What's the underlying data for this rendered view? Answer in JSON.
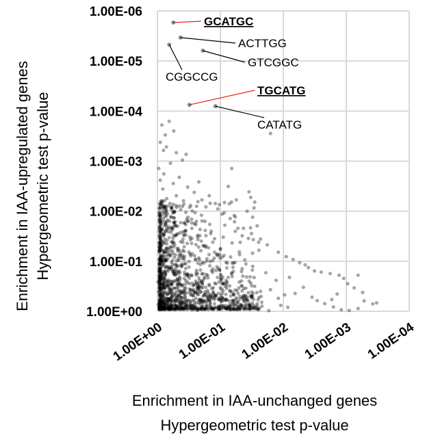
{
  "chart_data": {
    "type": "scatter",
    "scale": "log-reversed",
    "grid": true,
    "x_axis": {
      "label_lines": [
        "Enrichment in IAA-unchanged genes",
        "Hypergeometric test p-value"
      ],
      "ticks": [
        "1.00E+00",
        "1.00E-01",
        "1.00E-02",
        "1.00E-03",
        "1.00E-04"
      ],
      "tick_values": [
        1,
        0.1,
        0.01,
        0.001,
        0.0001
      ],
      "range": [
        1,
        0.0001
      ]
    },
    "y_axis": {
      "label_lines": [
        "Enrichment in IAA-upregulated genes",
        "Hypergeometric test p-value"
      ],
      "ticks": [
        "1.00E+00",
        "1.00E-01",
        "1.00E-02",
        "1.00E-03",
        "1.00E-04",
        "1.00E-05",
        "1.00E-06"
      ],
      "tick_values": [
        1,
        0.1,
        0.01,
        0.001,
        0.0001,
        1e-05,
        1e-06
      ],
      "range": [
        1,
        1e-06
      ]
    },
    "point_color": "#000000",
    "point_opacity": 0.35,
    "leader_color_highlight": "#e8201e",
    "leader_color_normal": "#000000",
    "labeled_points": [
      {
        "label": "GCATGC",
        "x": 0.56,
        "y": 1.7e-06,
        "highlight": true
      },
      {
        "label": "ACTTGG",
        "x": 0.43,
        "y": 3.4e-06,
        "highlight": false
      },
      {
        "label": "GTCGGC",
        "x": 0.19,
        "y": 6.2e-06,
        "highlight": false
      },
      {
        "label": "CGGCCG",
        "x": 0.65,
        "y": 4.7e-06,
        "highlight": false
      },
      {
        "label": "TGCATG",
        "x": 0.31,
        "y": 7.5e-05,
        "highlight": true
      },
      {
        "label": "CATATG",
        "x": 0.12,
        "y": 8e-05,
        "highlight": false
      }
    ],
    "points": [
      [
        0.65,
        0.00016
      ],
      [
        0.85,
        0.00019
      ],
      [
        0.75,
        0.0003
      ],
      [
        0.55,
        0.00025
      ],
      [
        0.016,
        0.00028
      ],
      [
        0.9,
        0.00042
      ],
      [
        0.8,
        0.00061
      ],
      [
        0.5,
        0.00068
      ],
      [
        0.35,
        0.00073
      ],
      [
        0.4,
        0.00095
      ],
      [
        0.72,
        0.00052
      ],
      [
        0.62,
        0.0011
      ],
      [
        0.95,
        0.0014
      ],
      [
        0.45,
        0.0021
      ],
      [
        0.066,
        0.0014
      ],
      [
        0.79,
        0.0018
      ],
      [
        0.82,
        0.0036
      ],
      [
        0.56,
        0.0028
      ],
      [
        0.33,
        0.0033
      ],
      [
        0.26,
        0.0042
      ],
      [
        0.22,
        0.0026
      ],
      [
        0.9,
        0.0024
      ],
      [
        0.71,
        0.0056
      ],
      [
        0.5,
        0.0049
      ],
      [
        0.15,
        0.0049
      ],
      [
        0.12,
        0.007
      ],
      [
        0.075,
        0.0032
      ],
      [
        0.035,
        0.0041
      ],
      [
        0.033,
        0.0053
      ],
      [
        0.6,
        0.0086
      ],
      [
        0.38,
        0.0072
      ],
      [
        0.88,
        0.0063
      ],
      [
        0.28,
        0.0099
      ],
      [
        0.17,
        0.0082
      ],
      [
        0.07,
        0.014
      ],
      [
        0.11,
        0.009
      ],
      [
        0.058,
        0.013
      ],
      [
        0.043,
        0.022
      ],
      [
        0.032,
        0.028
      ],
      [
        0.085,
        0.019
      ],
      [
        0.2,
        0.012
      ],
      [
        0.24,
        0.016
      ],
      [
        0.14,
        0.025
      ],
      [
        0.045,
        0.031
      ],
      [
        0.023,
        0.036
      ],
      [
        0.018,
        0.047
      ],
      [
        0.03,
        0.037
      ],
      [
        0.09,
        0.033
      ],
      [
        0.065,
        0.043
      ],
      [
        0.1,
        0.058
      ],
      [
        0.05,
        0.065
      ],
      [
        0.012,
        0.066
      ],
      [
        0.009,
        0.081
      ],
      [
        0.007,
        0.092
      ],
      [
        0.0055,
        0.107
      ],
      [
        0.0045,
        0.118
      ],
      [
        0.004,
        0.134
      ],
      [
        0.0032,
        0.156
      ],
      [
        0.0025,
        0.165
      ],
      [
        0.008,
        0.21
      ],
      [
        0.0018,
        0.176
      ],
      [
        0.0013,
        0.19
      ],
      [
        0.0011,
        0.22
      ],
      [
        0.00095,
        0.28
      ],
      [
        0.00075,
        0.34
      ],
      [
        0.00065,
        0.19
      ],
      [
        0.00055,
        0.42
      ],
      [
        0.019,
        0.17
      ],
      [
        0.031,
        0.15
      ],
      [
        0.013,
        0.24
      ],
      [
        0.016,
        0.37
      ],
      [
        0.0065,
        0.44
      ],
      [
        0.0048,
        0.33
      ],
      [
        0.0035,
        0.52
      ],
      [
        0.0029,
        0.61
      ],
      [
        0.0022,
        0.7
      ],
      [
        0.0017,
        0.58
      ],
      [
        0.0014,
        0.45
      ],
      [
        0.00052,
        0.62
      ],
      [
        0.00038,
        0.71
      ],
      [
        0.00033,
        0.68
      ],
      [
        0.0016,
        0.82
      ],
      [
        0.0012,
        0.93
      ],
      [
        0.0009,
        0.96
      ],
      [
        0.00065,
        0.88
      ],
      [
        0.011,
        0.76
      ],
      [
        0.0085,
        0.83
      ],
      [
        0.025,
        0.92
      ],
      [
        0.022,
        0.66
      ],
      [
        0.04,
        0.81
      ],
      [
        0.06,
        0.64
      ],
      [
        0.032,
        0.51
      ],
      [
        0.045,
        0.39
      ],
      [
        0.05,
        0.26
      ],
      [
        0.075,
        0.21
      ],
      [
        0.035,
        0.74
      ],
      [
        0.028,
        0.87
      ],
      [
        0.017,
        0.97
      ],
      [
        0.012,
        0.55
      ],
      [
        0.0095,
        0.47
      ],
      [
        0.07,
        0.93
      ],
      [
        0.09,
        0.77
      ],
      [
        0.1,
        0.57
      ],
      [
        0.13,
        0.43
      ],
      [
        0.2,
        0.33
      ],
      [
        0.31,
        0.28
      ],
      [
        0.44,
        0.22
      ],
      [
        0.55,
        0.17
      ],
      [
        0.62,
        0.13
      ],
      [
        0.74,
        0.094
      ],
      [
        0.85,
        0.077
      ],
      [
        0.93,
        0.062
      ],
      [
        0.27,
        0.48
      ],
      [
        0.19,
        0.62
      ],
      [
        0.16,
        0.89
      ],
      [
        0.41,
        0.72
      ],
      [
        0.23,
        0.95
      ],
      [
        0.52,
        0.58
      ],
      [
        0.36,
        0.83
      ],
      [
        0.66,
        0.39
      ],
      [
        0.58,
        0.52
      ],
      [
        0.79,
        0.29
      ],
      [
        0.72,
        0.46
      ],
      [
        0.67,
        0.74
      ],
      [
        0.84,
        0.66
      ],
      [
        0.91,
        0.88
      ],
      [
        0.96,
        0.41
      ],
      [
        0.98,
        0.26
      ],
      [
        0.97,
        0.74
      ],
      [
        0.88,
        0.53
      ]
    ]
  }
}
